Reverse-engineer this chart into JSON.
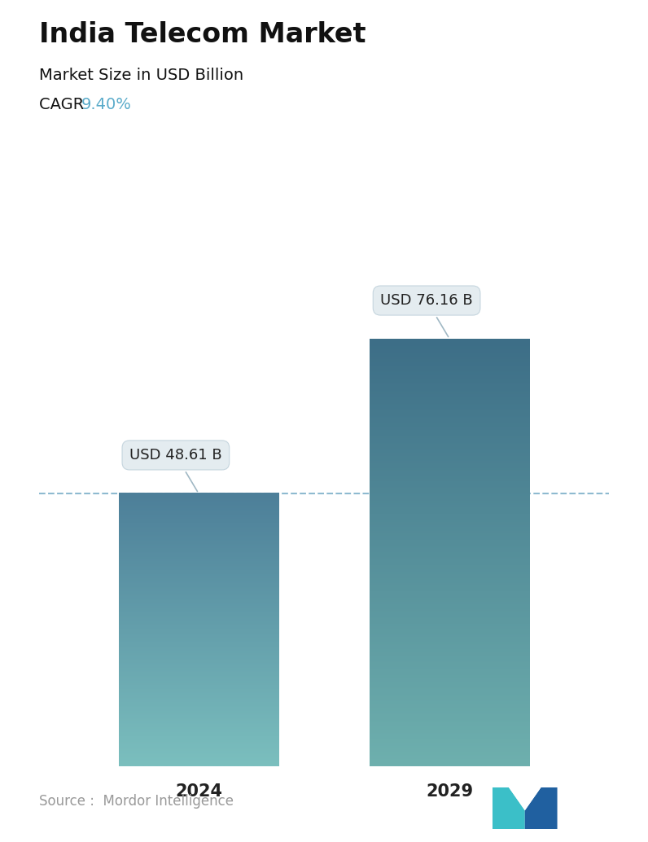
{
  "title": "India Telecom Market",
  "subtitle": "Market Size in USD Billion",
  "cagr_label": "CAGR ",
  "cagr_value": "9.40%",
  "cagr_color": "#5aabca",
  "categories": [
    "2024",
    "2029"
  ],
  "values": [
    48.61,
    76.16
  ],
  "bar_labels": [
    "USD 48.61 B",
    "USD 76.16 B"
  ],
  "bar_top_colors": [
    "#4d7f99",
    "#3d6e87"
  ],
  "bar_bottom_colors": [
    "#7bbfbe",
    "#6eb0ae"
  ],
  "dashed_line_color": "#7aaec8",
  "dashed_line_value": 48.61,
  "source_text": "Source :  Mordor Intelligence",
  "source_color": "#999999",
  "background_color": "#ffffff",
  "title_fontsize": 24,
  "subtitle_fontsize": 14,
  "cagr_fontsize": 14,
  "bar_label_fontsize": 13,
  "xlabel_fontsize": 15,
  "source_fontsize": 12,
  "ylim": [
    0,
    90
  ],
  "bar_width": 0.28,
  "x_positions": [
    0.28,
    0.72
  ]
}
